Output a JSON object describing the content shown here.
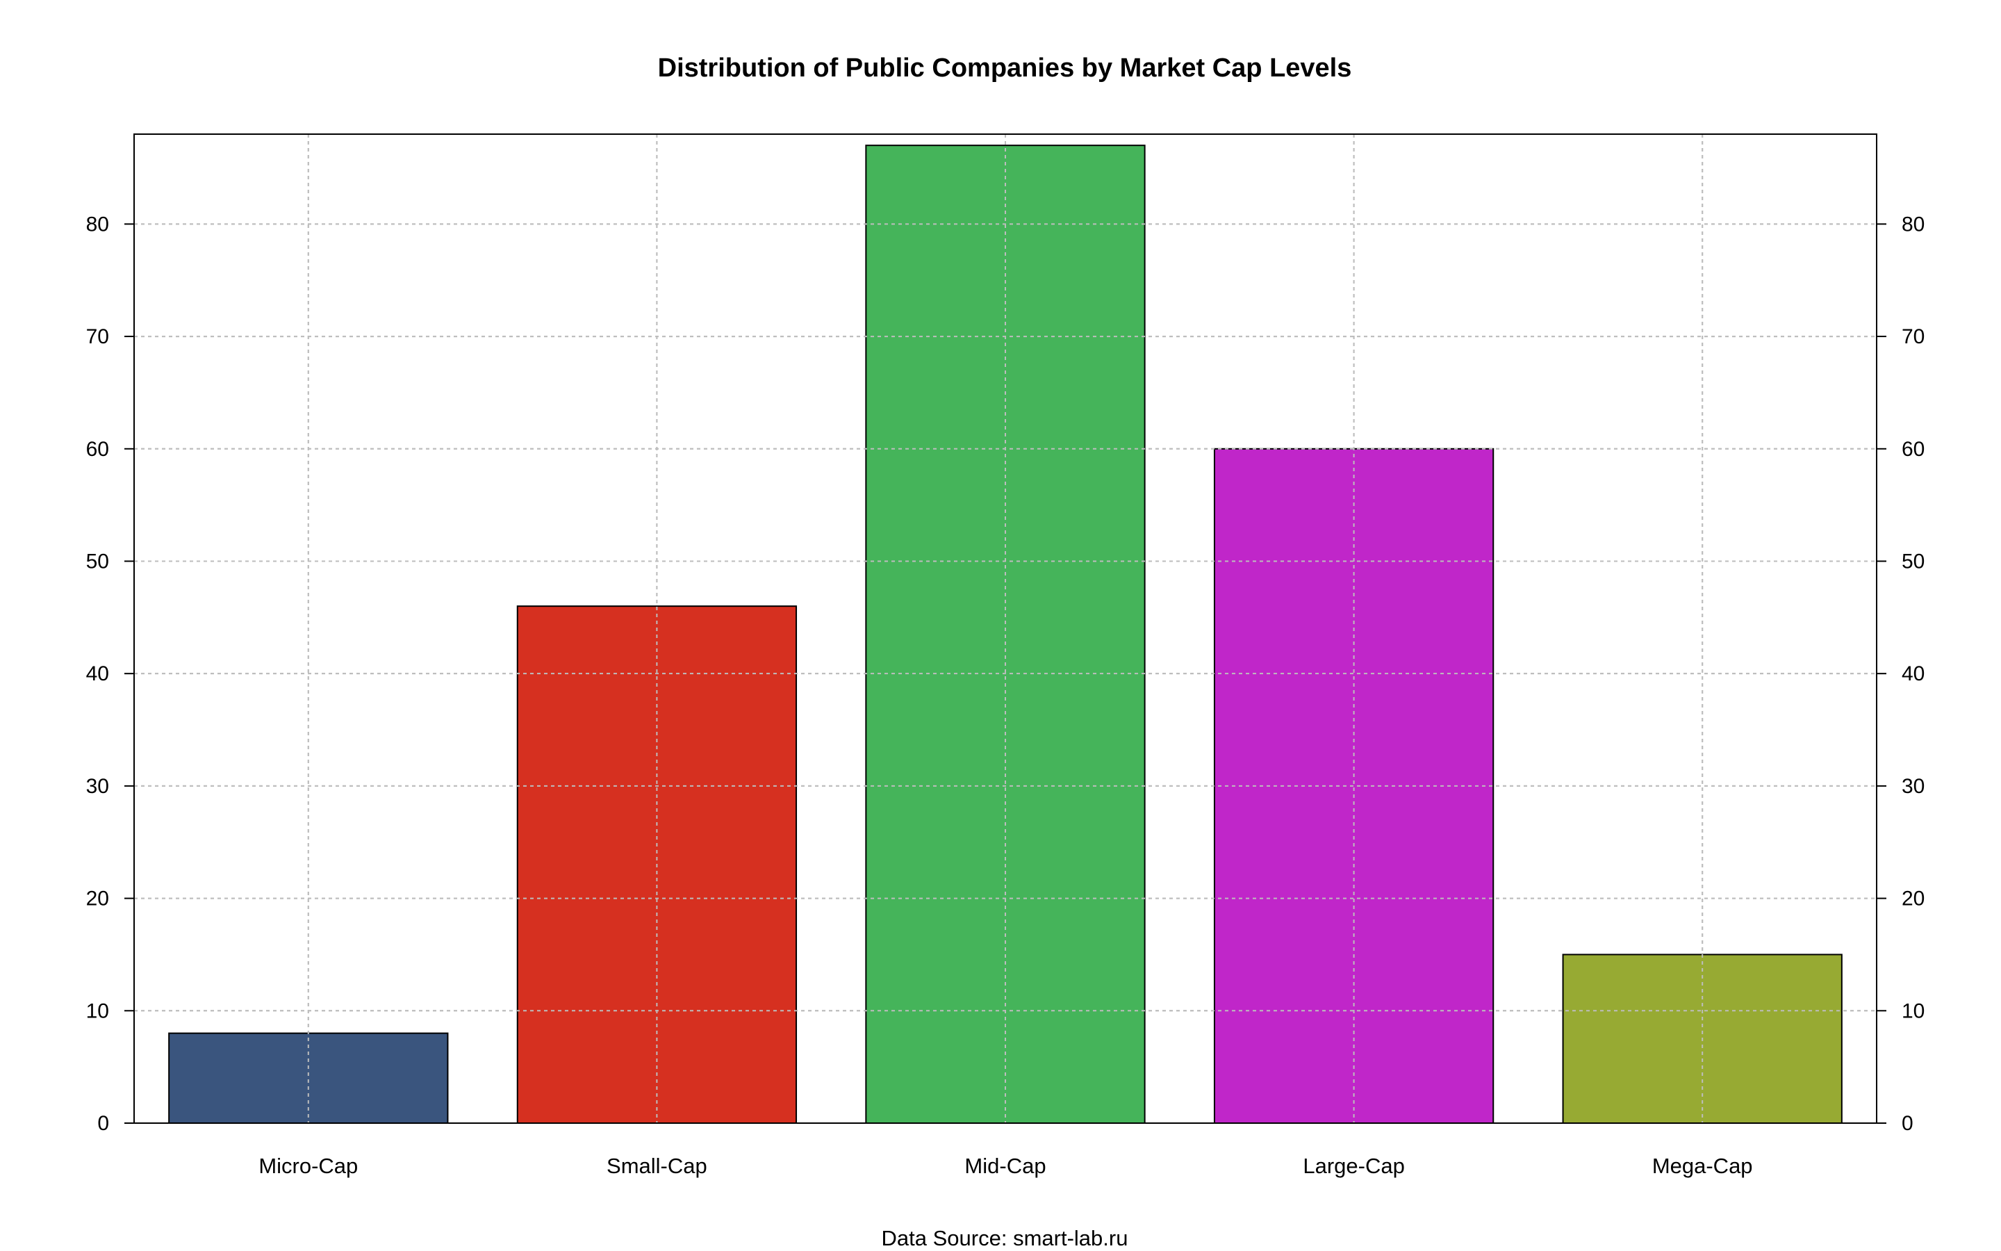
{
  "chart_data": {
    "type": "bar",
    "title": "Distribution of Public Companies by Market Cap Levels",
    "caption": "Data Source: smart-lab.ru",
    "xlabel": "",
    "ylabel": "",
    "categories": [
      "Micro-Cap",
      "Small-Cap",
      "Mid-Cap",
      "Large-Cap",
      "Mega-Cap"
    ],
    "values": [
      8,
      46,
      87,
      60,
      15
    ],
    "colors": [
      "#3a557e",
      "#d63020",
      "#45b45a",
      "#c026c9",
      "#97aa33"
    ],
    "ylim": [
      0,
      88
    ],
    "yticks": [
      0,
      10,
      20,
      30,
      40,
      50,
      60,
      70,
      80
    ],
    "ytick_labels": [
      "0",
      "10",
      "20",
      "30",
      "40",
      "50",
      "60",
      "70",
      "80"
    ],
    "y_axis_both_sides": true,
    "grid": true,
    "grid_style": "dotted",
    "grid_color": "#bdbdbd",
    "legend": "none"
  }
}
